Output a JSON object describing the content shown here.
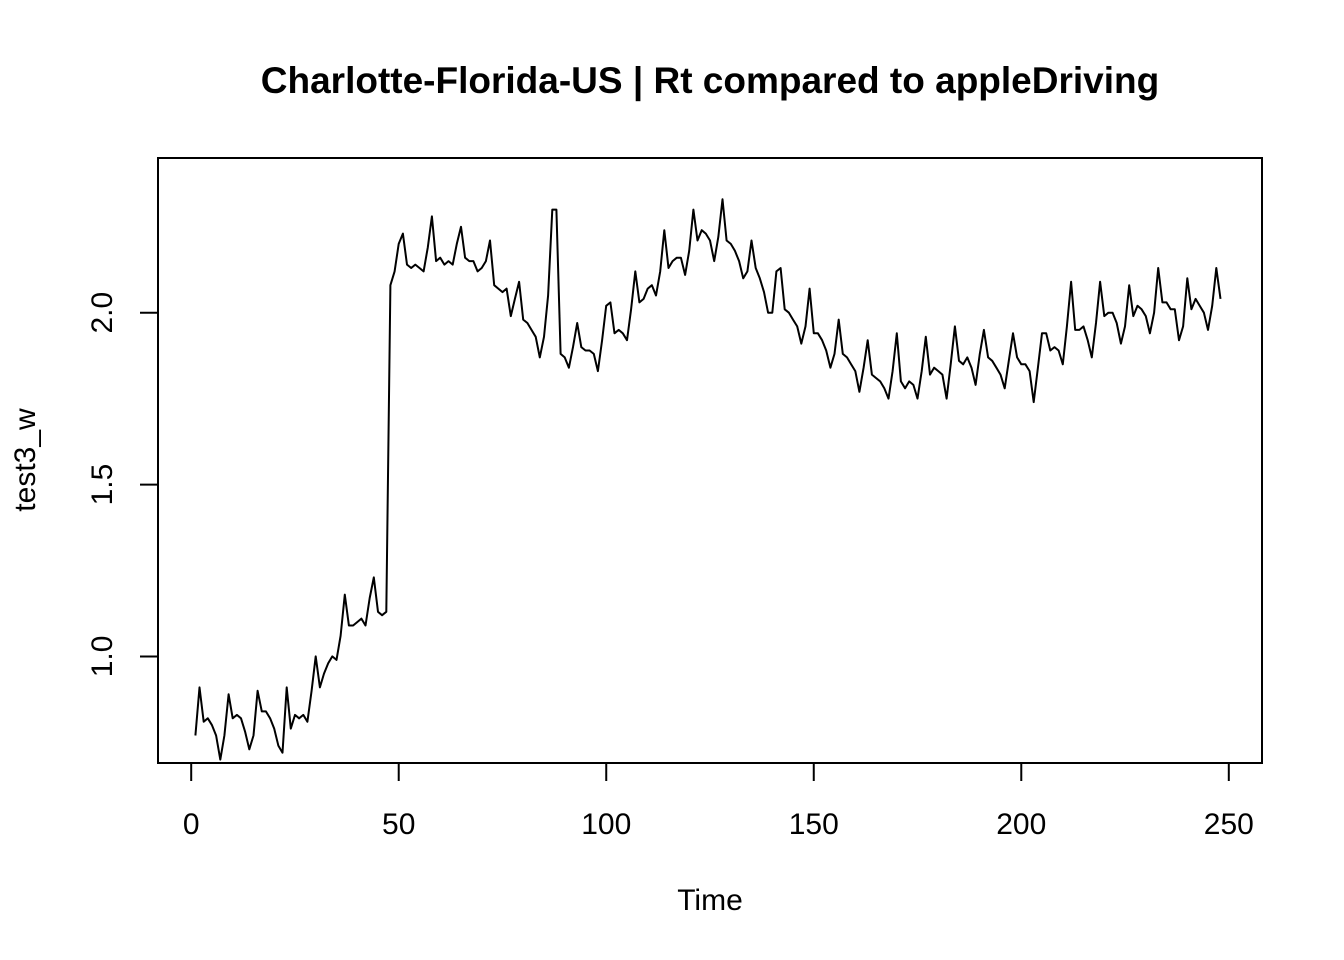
{
  "chart_data": {
    "type": "line",
    "title": "Charlotte-Florida-US | Rt compared to appleDriving",
    "xlabel": "Time",
    "ylabel": "test3_w",
    "xlim": [
      -8,
      258
    ],
    "ylim": [
      0.69,
      2.45
    ],
    "x_ticks": [
      0,
      50,
      100,
      150,
      200,
      250
    ],
    "x_tick_labels": [
      "0",
      "50",
      "100",
      "150",
      "200",
      "250"
    ],
    "y_ticks": [
      1.0,
      1.5,
      2.0
    ],
    "y_tick_labels": [
      "1.0",
      "1.5",
      "2.0"
    ],
    "grid": false,
    "legend": "none",
    "line_color": "#000000",
    "series": [
      {
        "x": [
          1,
          2,
          3,
          4,
          5,
          6,
          7,
          8,
          9,
          10,
          11,
          12,
          13,
          14,
          15,
          16,
          17,
          18,
          19,
          20,
          21,
          22,
          23,
          24,
          25,
          26,
          27,
          28,
          29,
          30,
          31,
          32,
          33,
          34,
          35,
          36,
          37,
          38,
          39,
          40,
          41,
          42,
          43,
          44,
          45,
          46,
          47,
          48,
          49,
          50,
          51,
          52,
          53,
          54,
          55,
          56,
          57,
          58,
          59,
          60,
          61,
          62,
          63,
          64,
          65,
          66,
          67,
          68,
          69,
          70,
          71,
          72,
          73,
          74,
          75,
          76,
          77,
          78,
          79,
          80,
          81,
          82,
          83,
          84,
          85,
          86,
          87,
          88,
          89,
          90,
          91,
          92,
          93,
          94,
          95,
          96,
          97,
          98,
          99,
          100,
          101,
          102,
          103,
          104,
          105,
          106,
          107,
          108,
          109,
          110,
          111,
          112,
          113,
          114,
          115,
          116,
          117,
          118,
          119,
          120,
          121,
          122,
          123,
          124,
          125,
          126,
          127,
          128,
          129,
          130,
          131,
          132,
          133,
          134,
          135,
          136,
          137,
          138,
          139,
          140,
          141,
          142,
          143,
          144,
          145,
          146,
          147,
          148,
          149,
          150,
          151,
          152,
          153,
          154,
          155,
          156,
          157,
          158,
          159,
          160,
          161,
          162,
          163,
          164,
          165,
          166,
          167,
          168,
          169,
          170,
          171,
          172,
          173,
          174,
          175,
          176,
          177,
          178,
          179,
          180,
          181,
          182,
          183,
          184,
          185,
          186,
          187,
          188,
          189,
          190,
          191,
          192,
          193,
          194,
          195,
          196,
          197,
          198,
          199,
          200,
          201,
          202,
          203,
          204,
          205,
          206,
          207,
          208,
          209,
          210,
          211,
          212,
          213,
          214,
          215,
          216,
          217,
          218,
          219,
          220,
          221,
          222,
          223,
          224,
          225,
          226,
          227,
          228,
          229,
          230,
          231,
          232,
          233,
          234,
          235,
          236,
          237,
          238,
          239,
          240,
          241,
          242,
          243,
          244,
          245,
          246,
          247,
          248
        ],
        "values": [
          0.77,
          0.91,
          0.81,
          0.82,
          0.8,
          0.77,
          0.7,
          0.77,
          0.89,
          0.82,
          0.83,
          0.82,
          0.78,
          0.73,
          0.77,
          0.9,
          0.84,
          0.84,
          0.82,
          0.79,
          0.74,
          0.72,
          0.91,
          0.79,
          0.83,
          0.82,
          0.83,
          0.81,
          0.9,
          1.0,
          0.91,
          0.95,
          0.98,
          1.0,
          0.99,
          1.06,
          1.18,
          1.09,
          1.09,
          1.1,
          1.11,
          1.09,
          1.17,
          1.23,
          1.13,
          1.12,
          1.13,
          2.08,
          2.12,
          2.2,
          2.23,
          2.14,
          2.13,
          2.14,
          2.13,
          2.12,
          2.19,
          2.28,
          2.15,
          2.16,
          2.14,
          2.15,
          2.14,
          2.2,
          2.25,
          2.16,
          2.15,
          2.15,
          2.12,
          2.13,
          2.15,
          2.21,
          2.08,
          2.07,
          2.06,
          2.07,
          1.99,
          2.04,
          2.09,
          1.98,
          1.97,
          1.95,
          1.93,
          1.87,
          1.93,
          2.05,
          2.3,
          2.3,
          1.88,
          1.87,
          1.84,
          1.9,
          1.97,
          1.9,
          1.89,
          1.89,
          1.88,
          1.83,
          1.92,
          2.02,
          2.03,
          1.94,
          1.95,
          1.94,
          1.92,
          2.01,
          2.12,
          2.03,
          2.04,
          2.07,
          2.08,
          2.05,
          2.12,
          2.24,
          2.13,
          2.15,
          2.16,
          2.16,
          2.11,
          2.18,
          2.3,
          2.21,
          2.24,
          2.23,
          2.21,
          2.15,
          2.22,
          2.33,
          2.21,
          2.2,
          2.18,
          2.15,
          2.1,
          2.12,
          2.21,
          2.13,
          2.1,
          2.06,
          2.0,
          2.0,
          2.12,
          2.13,
          2.01,
          2.0,
          1.98,
          1.96,
          1.91,
          1.96,
          2.07,
          1.94,
          1.94,
          1.92,
          1.89,
          1.84,
          1.88,
          1.98,
          1.88,
          1.87,
          1.85,
          1.83,
          1.77,
          1.84,
          1.92,
          1.82,
          1.81,
          1.8,
          1.78,
          1.75,
          1.83,
          1.94,
          1.8,
          1.78,
          1.8,
          1.79,
          1.75,
          1.83,
          1.93,
          1.82,
          1.84,
          1.83,
          1.82,
          1.75,
          1.85,
          1.96,
          1.86,
          1.85,
          1.87,
          1.84,
          1.79,
          1.88,
          1.95,
          1.87,
          1.86,
          1.84,
          1.82,
          1.78,
          1.86,
          1.94,
          1.87,
          1.85,
          1.85,
          1.83,
          1.74,
          1.84,
          1.94,
          1.94,
          1.89,
          1.9,
          1.89,
          1.85,
          1.96,
          2.09,
          1.95,
          1.95,
          1.96,
          1.92,
          1.87,
          1.97,
          2.09,
          1.99,
          2.0,
          2.0,
          1.97,
          1.91,
          1.96,
          2.08,
          1.99,
          2.02,
          2.01,
          1.99,
          1.94,
          2.0,
          2.13,
          2.03,
          2.03,
          2.01,
          2.01,
          1.92,
          1.96,
          2.1,
          2.01,
          2.04,
          2.02,
          2.0,
          1.95,
          2.02,
          2.13,
          2.04
        ]
      }
    ]
  }
}
